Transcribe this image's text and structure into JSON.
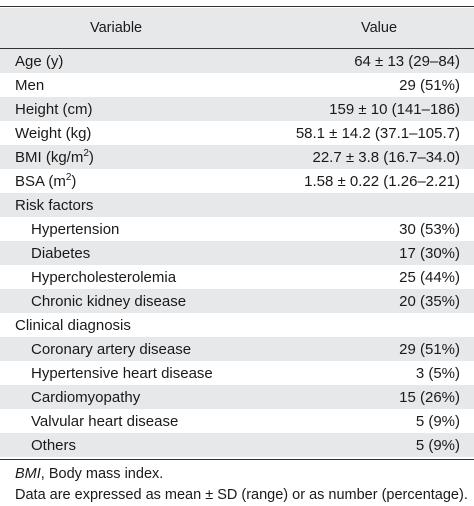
{
  "table": {
    "header": {
      "variable": "Variable",
      "value": "Value"
    },
    "rows": [
      {
        "label": "Age (y)",
        "value": "64 ± 13 (29–84)"
      },
      {
        "label": "Men",
        "value": "29 (51%)"
      },
      {
        "label": "Height (cm)",
        "value": "159 ± 10 (141–186)"
      },
      {
        "label": "Weight (kg)",
        "value": "58.1 ± 14.2 (37.1–105.7)"
      },
      {
        "label": "BMI (kg/m",
        "label_sup": "2",
        "label_after": ")",
        "value": "22.7 ± 3.8 (16.7–34.0)"
      },
      {
        "label": "BSA (m",
        "label_sup": "2",
        "label_after": ")",
        "value": "1.58 ± 0.22 (1.26–2.21)"
      },
      {
        "label": "Risk factors",
        "value": ""
      },
      {
        "label": "Hypertension",
        "value": "30 (53%)"
      },
      {
        "label": "Diabetes",
        "value": "17 (30%)"
      },
      {
        "label": "Hypercholesterolemia",
        "value": "25 (44%)"
      },
      {
        "label": "Chronic kidney disease",
        "value": "20 (35%)"
      },
      {
        "label": "Clinical diagnosis",
        "value": ""
      },
      {
        "label": "Coronary artery disease",
        "value": "29 (51%)"
      },
      {
        "label": "Hypertensive heart disease",
        "value": "3 (5%)"
      },
      {
        "label": "Cardiomyopathy",
        "value": "15 (26%)"
      },
      {
        "label": "Valvular heart disease",
        "value": "5 (9%)"
      },
      {
        "label": "Others",
        "value": "5 (9%)"
      }
    ]
  },
  "footnotes": {
    "abbrev_term": "BMI",
    "abbrev_text": ", Body mass index.",
    "data_note": "Data are expressed as mean ± SD (range) or as number (percentage)."
  }
}
